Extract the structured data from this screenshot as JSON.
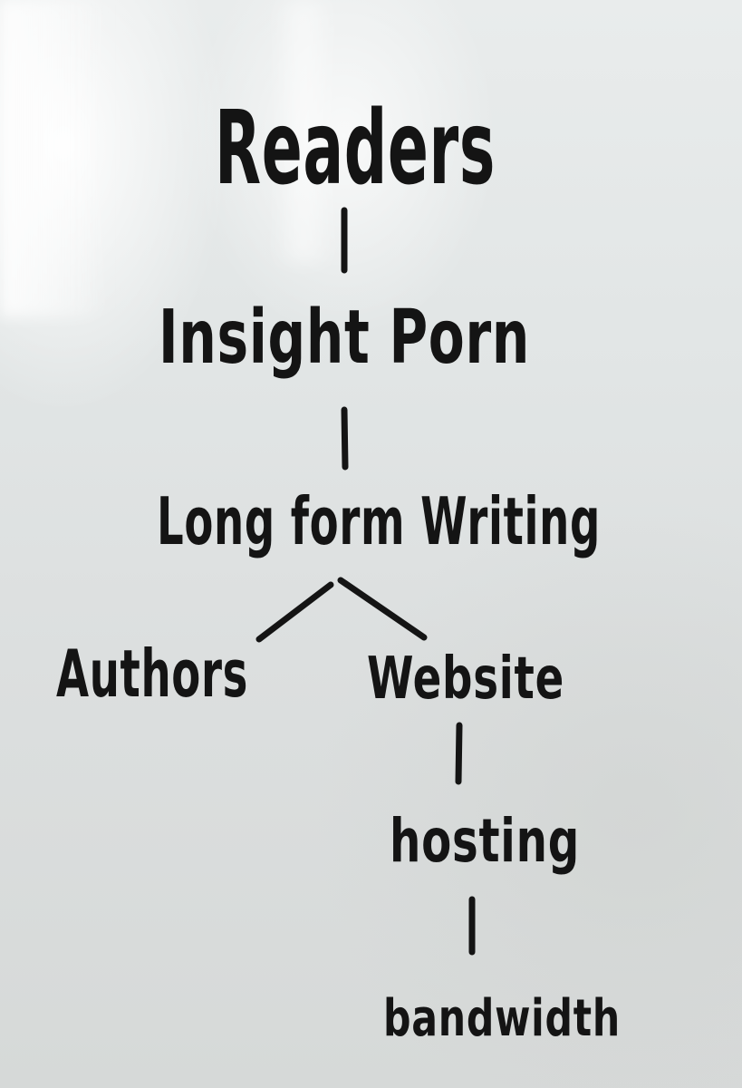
{
  "diagram": {
    "nodes": {
      "readers": "Readers",
      "insight_porn": "Insight Porn",
      "long_form_writing": "Long form Writing",
      "authors": "Authors",
      "website": "Website",
      "hosting": "hosting",
      "bandwidth": "bandwidth"
    },
    "ink_color": "#141414",
    "board_color": "#e3e6e6"
  }
}
